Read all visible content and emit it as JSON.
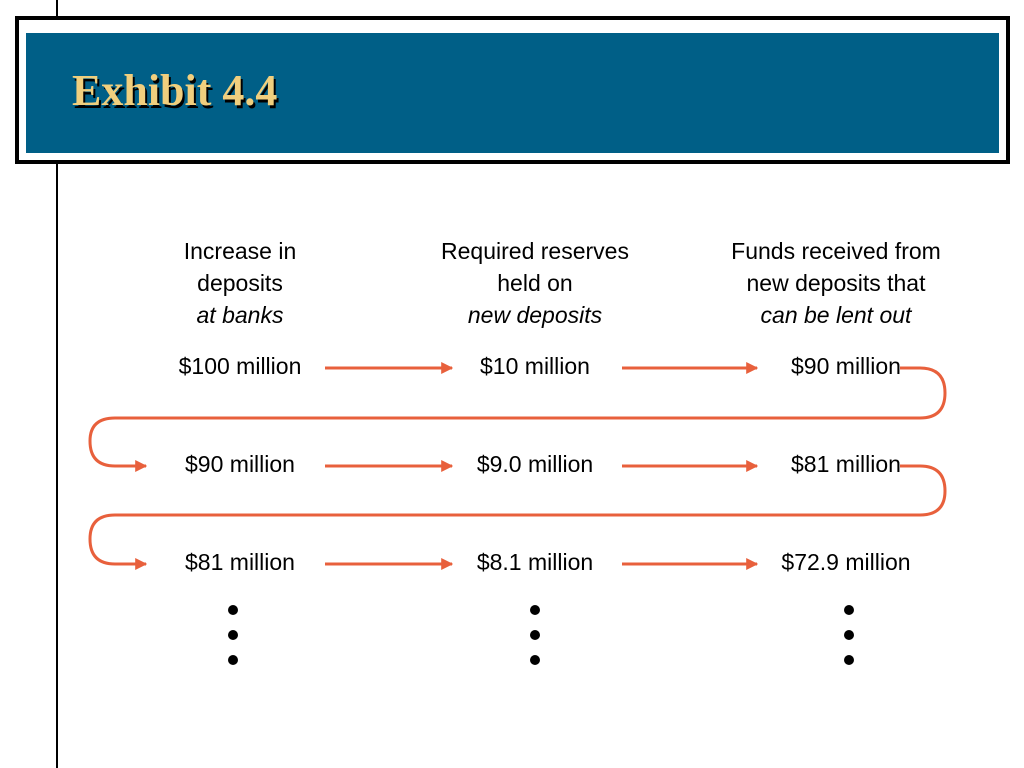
{
  "header": {
    "title": "Exhibit 4.4"
  },
  "columns": [
    {
      "lines": [
        "Increase in",
        "deposits"
      ],
      "emphasis": "at banks"
    },
    {
      "lines": [
        "Required reserves",
        "held on"
      ],
      "emphasis": "new deposits"
    },
    {
      "lines": [
        "Funds received from",
        "new deposits that"
      ],
      "emphasis": "can be lent out"
    }
  ],
  "rows": [
    [
      "$100 million",
      "$10 million",
      "$90 million"
    ],
    [
      "$90 million",
      "$9.0 million",
      "$81 million"
    ],
    [
      "$81 million",
      "$8.1 million",
      "$72.9 million"
    ]
  ]
}
